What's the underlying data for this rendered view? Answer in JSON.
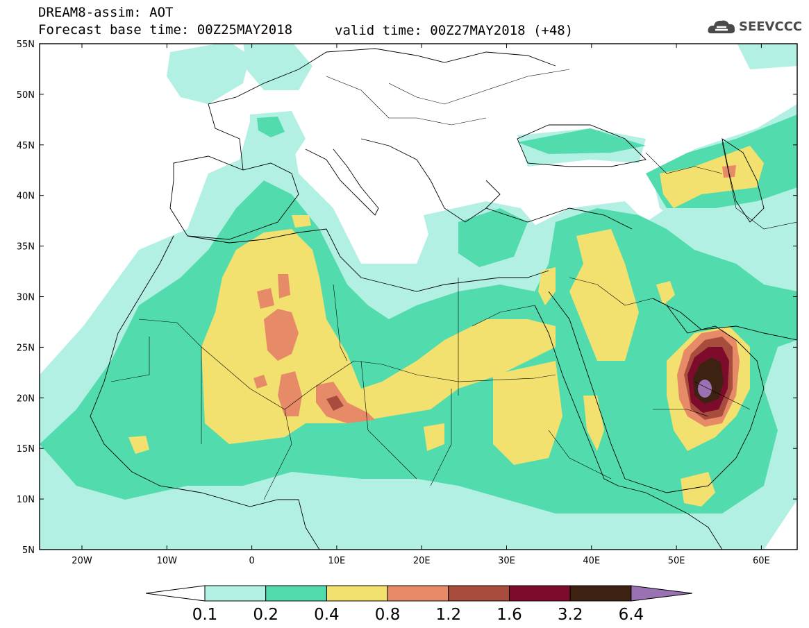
{
  "header": {
    "title": "DREAM8-assim: AOT",
    "base_time": "Forecast base time: 00Z25MAY2018",
    "valid_time": "valid time: 00Z27MAY2018 (+48)"
  },
  "logo": {
    "text": "SEEVCCC",
    "icon": "cloud-icon"
  },
  "axes": {
    "lat_labels": [
      "55N",
      "50N",
      "45N",
      "40N",
      "35N",
      "30N",
      "25N",
      "20N",
      "15N",
      "10N",
      "5N"
    ],
    "lon_labels": [
      "20W",
      "10W",
      "0",
      "10E",
      "20E",
      "30E",
      "40E",
      "50E",
      "60E"
    ]
  },
  "colorbar": {
    "labels": [
      "0.1",
      "0.2",
      "0.4",
      "0.8",
      "1.2",
      "1.6",
      "3.2",
      "6.4"
    ],
    "colors": [
      "#b2f0e4",
      "#52dcae",
      "#f2e16e",
      "#e68a68",
      "#a84d3e",
      "#7d0b2c",
      "#3d2212",
      "#9a72b4"
    ]
  },
  "fields": {
    "0.1": "#b2f0e4",
    "0.2": "#52dcae",
    "0.4": "#f2e16e",
    "0.8": "#e68a68",
    "1.2": "#a84d3e",
    "1.6": "#7d0b2c",
    "3.2": "#3d2212",
    "6.4": "#9a72b4"
  }
}
